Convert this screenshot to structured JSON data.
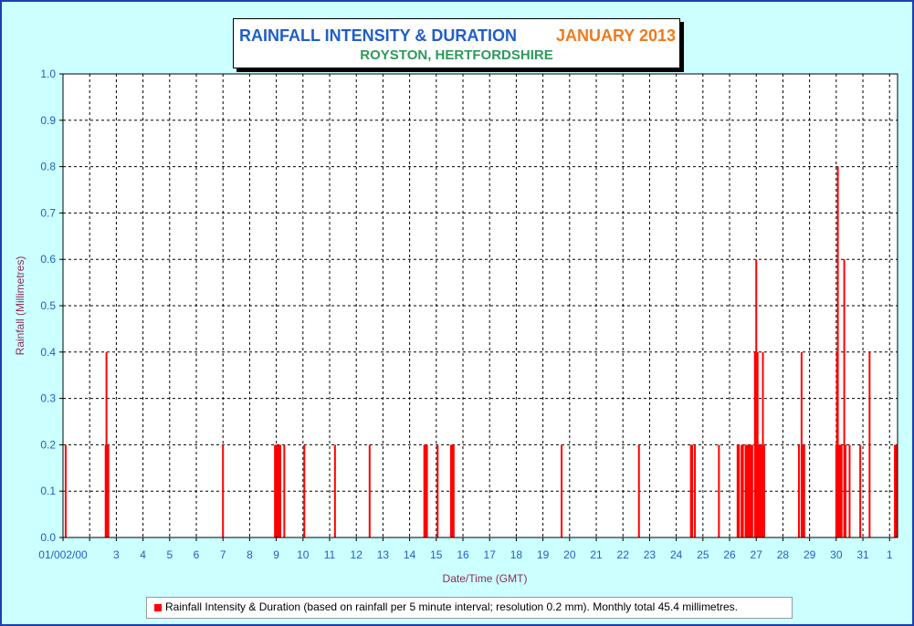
{
  "header": {
    "title": "RAINFALL INTENSITY & DURATION",
    "month": "JANUARY 2013",
    "location": "ROYSTON, HERTFORDSHIRE"
  },
  "legend": {
    "label": "Rainfall Intensity & Duration (based on rainfall per 5 minute interval; resolution 0.2 mm). Monthly total 45.4 millimetres."
  },
  "colors": {
    "background": "#ccffff",
    "bar": "#ff0000",
    "tick": "#1f5fc7",
    "axis_label": "#8b2f5a"
  },
  "chart_data": {
    "type": "bar",
    "title": "RAINFALL INTENSITY & DURATION",
    "subtitle": "ROYSTON, HERTFORDSHIRE",
    "xlabel": "Date/Time (GMT)",
    "ylabel": "Rainfall (Millimetres)",
    "ylim": [
      0,
      1
    ],
    "xlim": [
      1,
      32.3
    ],
    "grid": true,
    "legend_position": "bottom",
    "y_ticks": [
      "0.0",
      "0.1",
      "0.2",
      "0.3",
      "0.4",
      "0.5",
      "0.6",
      "0.7",
      "0.8",
      "0.9",
      "1.0"
    ],
    "x_ticks": [
      {
        "x": 1,
        "label": "01/002/00"
      },
      {
        "x": 2,
        "label": ""
      },
      {
        "x": 3,
        "label": "3"
      },
      {
        "x": 4,
        "label": "4"
      },
      {
        "x": 5,
        "label": "5"
      },
      {
        "x": 6,
        "label": "6"
      },
      {
        "x": 7,
        "label": "7"
      },
      {
        "x": 8,
        "label": "8"
      },
      {
        "x": 9,
        "label": "9"
      },
      {
        "x": 10,
        "label": "10"
      },
      {
        "x": 11,
        "label": "11"
      },
      {
        "x": 12,
        "label": "12"
      },
      {
        "x": 13,
        "label": "13"
      },
      {
        "x": 14,
        "label": "14"
      },
      {
        "x": 15,
        "label": "15"
      },
      {
        "x": 16,
        "label": "16"
      },
      {
        "x": 17,
        "label": "17"
      },
      {
        "x": 18,
        "label": "18"
      },
      {
        "x": 19,
        "label": "19"
      },
      {
        "x": 20,
        "label": "20"
      },
      {
        "x": 21,
        "label": "21"
      },
      {
        "x": 22,
        "label": "22"
      },
      {
        "x": 23,
        "label": "23"
      },
      {
        "x": 24,
        "label": "24"
      },
      {
        "x": 25,
        "label": "25"
      },
      {
        "x": 26,
        "label": "26"
      },
      {
        "x": 27,
        "label": "27"
      },
      {
        "x": 28,
        "label": "28"
      },
      {
        "x": 29,
        "label": "29"
      },
      {
        "x": 30,
        "label": "30"
      },
      {
        "x": 31,
        "label": "31"
      },
      {
        "x": 32,
        "label": "1"
      }
    ],
    "series": [
      {
        "points": [
          {
            "x": 1.1,
            "y": 0.2
          },
          {
            "x": 2.6,
            "y": 0.2
          },
          {
            "x": 2.63,
            "y": 0.4
          },
          {
            "x": 2.66,
            "y": 0.2
          },
          {
            "x": 2.7,
            "y": 0.2
          },
          {
            "x": 7.0,
            "y": 0.2
          },
          {
            "x": 8.95,
            "y": 0.2
          },
          {
            "x": 9.0,
            "y": 0.2
          },
          {
            "x": 9.05,
            "y": 0.2
          },
          {
            "x": 9.1,
            "y": 0.2
          },
          {
            "x": 9.15,
            "y": 0.2
          },
          {
            "x": 9.3,
            "y": 0.2
          },
          {
            "x": 10.05,
            "y": 0.2
          },
          {
            "x": 11.2,
            "y": 0.2
          },
          {
            "x": 12.5,
            "y": 0.2
          },
          {
            "x": 14.55,
            "y": 0.2
          },
          {
            "x": 14.6,
            "y": 0.2
          },
          {
            "x": 14.65,
            "y": 0.2
          },
          {
            "x": 15.05,
            "y": 0.2
          },
          {
            "x": 15.55,
            "y": 0.2
          },
          {
            "x": 15.6,
            "y": 0.2
          },
          {
            "x": 15.65,
            "y": 0.2
          },
          {
            "x": 19.7,
            "y": 0.2
          },
          {
            "x": 22.6,
            "y": 0.2
          },
          {
            "x": 24.55,
            "y": 0.2
          },
          {
            "x": 24.6,
            "y": 0.2
          },
          {
            "x": 24.7,
            "y": 0.2
          },
          {
            "x": 25.6,
            "y": 0.2
          },
          {
            "x": 26.3,
            "y": 0.2
          },
          {
            "x": 26.35,
            "y": 0.2
          },
          {
            "x": 26.45,
            "y": 0.2
          },
          {
            "x": 26.5,
            "y": 0.2
          },
          {
            "x": 26.6,
            "y": 0.2
          },
          {
            "x": 26.65,
            "y": 0.2
          },
          {
            "x": 26.7,
            "y": 0.2
          },
          {
            "x": 26.75,
            "y": 0.2
          },
          {
            "x": 26.8,
            "y": 0.2
          },
          {
            "x": 26.85,
            "y": 0.2
          },
          {
            "x": 26.95,
            "y": 0.4
          },
          {
            "x": 27.0,
            "y": 0.6
          },
          {
            "x": 27.05,
            "y": 0.4
          },
          {
            "x": 27.1,
            "y": 0.2
          },
          {
            "x": 27.15,
            "y": 0.2
          },
          {
            "x": 27.2,
            "y": 0.2
          },
          {
            "x": 27.25,
            "y": 0.4
          },
          {
            "x": 27.3,
            "y": 0.2
          },
          {
            "x": 28.6,
            "y": 0.2
          },
          {
            "x": 28.7,
            "y": 0.4
          },
          {
            "x": 28.75,
            "y": 0.2
          },
          {
            "x": 28.8,
            "y": 0.2
          },
          {
            "x": 30.0,
            "y": 0.2
          },
          {
            "x": 30.03,
            "y": 0.4
          },
          {
            "x": 30.06,
            "y": 0.8
          },
          {
            "x": 30.1,
            "y": 0.2
          },
          {
            "x": 30.15,
            "y": 0.2
          },
          {
            "x": 30.2,
            "y": 0.2
          },
          {
            "x": 30.3,
            "y": 0.6
          },
          {
            "x": 30.35,
            "y": 0.2
          },
          {
            "x": 30.5,
            "y": 0.2
          },
          {
            "x": 30.9,
            "y": 0.2
          },
          {
            "x": 31.25,
            "y": 0.4
          },
          {
            "x": 32.2,
            "y": 0.2
          },
          {
            "x": 32.25,
            "y": 0.2
          }
        ]
      }
    ]
  }
}
